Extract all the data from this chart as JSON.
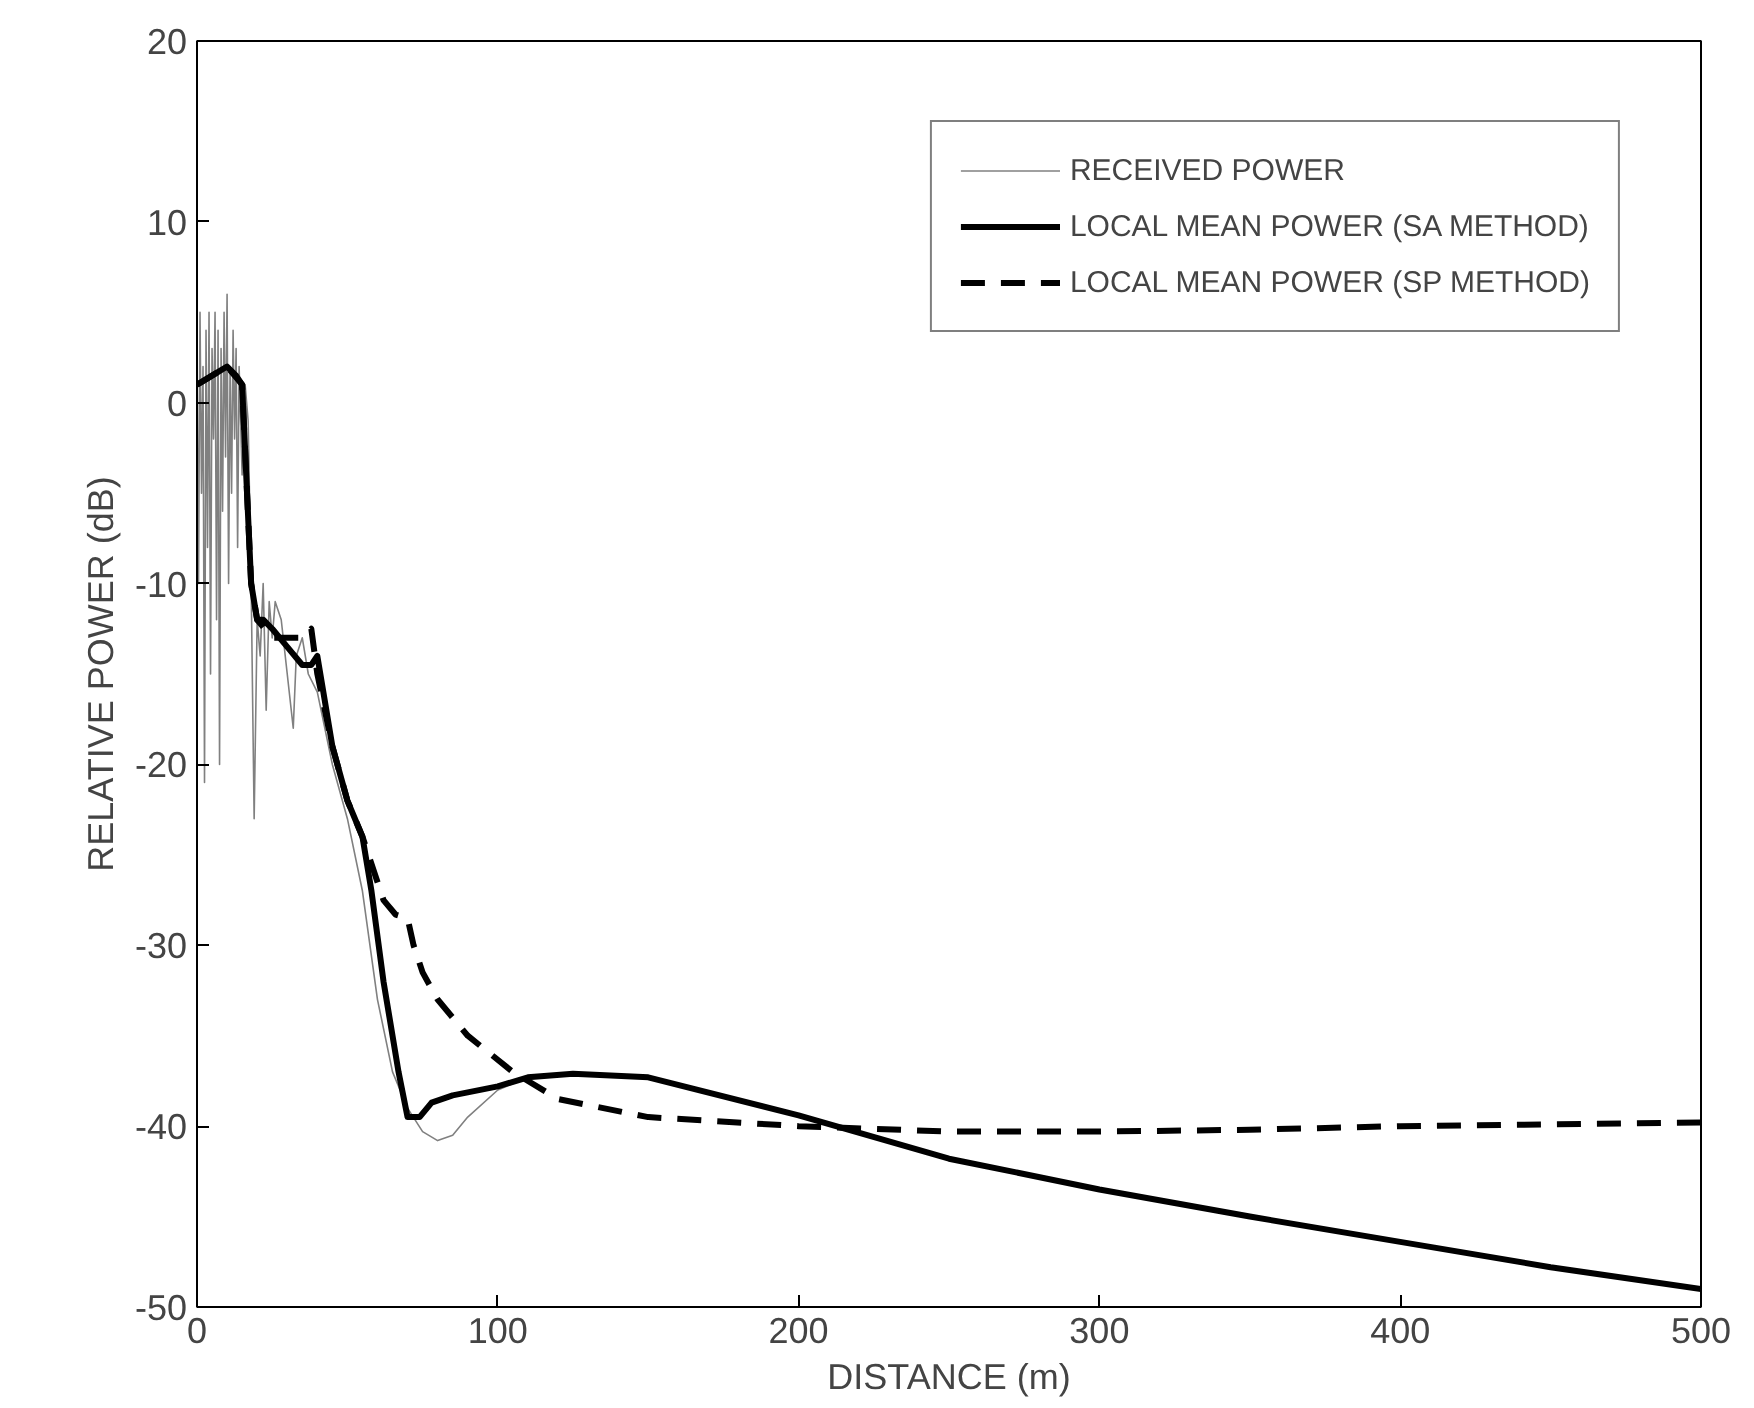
{
  "chart_data": {
    "type": "line",
    "xlabel": "DISTANCE (m)",
    "ylabel": "RELATIVE POWER (dB)",
    "xlim": [
      0,
      500
    ],
    "ylim": [
      -50,
      20
    ],
    "xticks": [
      0,
      100,
      200,
      300,
      400,
      500
    ],
    "yticks": [
      -50,
      -40,
      -30,
      -20,
      -10,
      0,
      10,
      20
    ],
    "grid": false,
    "legend": "top right",
    "series": [
      {
        "name": "RECEIVED POWER",
        "color": "#808080",
        "line_style": "solid",
        "x": [
          0,
          0.5,
          1,
          1.5,
          2,
          2.5,
          3,
          3.5,
          4,
          4.5,
          5,
          5.5,
          6,
          6.5,
          7,
          7.5,
          8,
          8.5,
          9,
          9.5,
          10,
          10.5,
          11,
          11.5,
          12,
          12.5,
          13,
          13.5,
          14,
          15,
          16,
          17,
          18,
          19,
          20,
          21,
          22,
          23,
          24,
          25,
          26,
          28,
          30,
          32,
          33,
          35,
          37,
          40,
          45,
          50,
          55,
          60,
          65,
          70,
          75,
          80,
          85,
          90,
          100,
          110,
          125,
          150,
          200,
          250,
          300,
          350,
          400,
          450,
          500
        ],
        "values": [
          3,
          -10,
          5,
          -5,
          2,
          -21,
          4,
          -8,
          5,
          -15,
          3,
          -2,
          5,
          -12,
          4,
          -20,
          3,
          -6,
          5,
          -3,
          6,
          -10,
          2,
          -5,
          4,
          -2,
          3,
          -8,
          2,
          -4,
          1,
          -1,
          -10,
          -23,
          -12,
          -14,
          -10,
          -17,
          -11,
          -13,
          -11,
          -12,
          -15,
          -18,
          -14,
          -13,
          -15,
          -16,
          -20,
          -23,
          -27,
          -33,
          -37,
          -39,
          -40.3,
          -40.8,
          -40.5,
          -39.5,
          -38,
          -37.3,
          -37.1,
          -37.3,
          -39.4,
          -41.8,
          -43.5,
          -45,
          -46.4,
          -47.8,
          -49
        ]
      },
      {
        "name": "LOCAL MEAN POWER (SA METHOD)",
        "color": "#000000",
        "line_style": "solid",
        "x": [
          0,
          5,
          10,
          13,
          15,
          18,
          20,
          22,
          25,
          30,
          35,
          38,
          40,
          42,
          45,
          50,
          55,
          58,
          62,
          67,
          70,
          74,
          78,
          85,
          100,
          110,
          125,
          150,
          200,
          250,
          300,
          350,
          400,
          450,
          500
        ],
        "values": [
          1,
          1.5,
          2,
          1.5,
          1,
          -10,
          -12,
          -12,
          -12.5,
          -13.5,
          -14.5,
          -14.5,
          -14,
          -16,
          -19,
          -22,
          -24,
          -27,
          -32,
          -37,
          -39.5,
          -39.5,
          -38.7,
          -38.3,
          -37.8,
          -37.3,
          -37.1,
          -37.3,
          -39.4,
          -41.8,
          -43.5,
          -45,
          -46.4,
          -47.8,
          -49
        ]
      },
      {
        "name": "LOCAL MEAN POWER (SP METHOD)",
        "color": "#000000",
        "line_style": "dashed",
        "x": [
          0,
          10,
          15,
          18,
          20,
          25,
          30,
          35,
          38,
          40,
          45,
          50,
          55,
          60,
          62,
          66,
          70,
          72,
          75,
          80,
          90,
          105,
          120,
          150,
          200,
          250,
          300,
          350,
          400,
          450,
          500
        ],
        "values": [
          1,
          2,
          1,
          -10,
          -12,
          -13,
          -13,
          -13,
          -12.5,
          -15,
          -19,
          -22,
          -24,
          -26.5,
          -27.5,
          -28.3,
          -28.5,
          -30,
          -31.5,
          -33,
          -35,
          -37,
          -38.5,
          -39.5,
          -40,
          -40.3,
          -40.3,
          -40.2,
          -40,
          -39.9,
          -39.8
        ]
      }
    ]
  }
}
